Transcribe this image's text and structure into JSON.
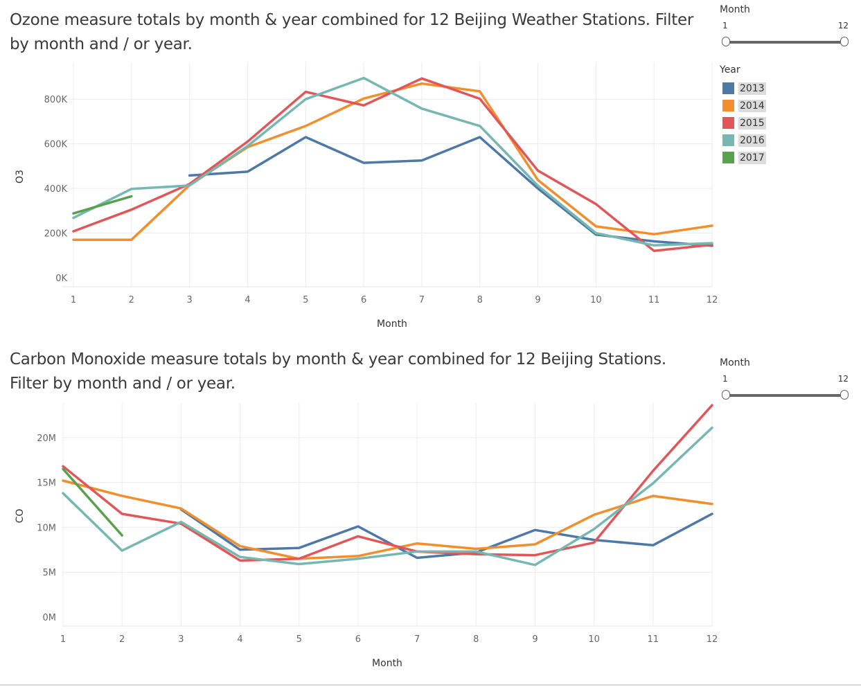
{
  "colors": {
    "2013": "#4e79a7",
    "2014": "#f28e2b",
    "2015": "#e15759",
    "2016": "#76b7b2",
    "2017": "#59a14f"
  },
  "month_filter_top": {
    "title": "Month",
    "min_label": "1",
    "max_label": "12"
  },
  "month_filter_bottom": {
    "title": "Month",
    "min_label": "1",
    "max_label": "12"
  },
  "legend": {
    "title": "Year",
    "items": [
      {
        "label": "2013",
        "color": "#4e79a7"
      },
      {
        "label": "2014",
        "color": "#f28e2b"
      },
      {
        "label": "2015",
        "color": "#e15759"
      },
      {
        "label": "2016",
        "color": "#76b7b2"
      },
      {
        "label": "2017",
        "color": "#59a14f"
      }
    ]
  },
  "chart_data": [
    {
      "type": "line",
      "title": "Ozone measure totals by month & year combined for 12 Beijing Weather Stations. Filter by month and / or year.",
      "xlabel": "Month",
      "ylabel": "O3",
      "x": [
        1,
        2,
        3,
        4,
        5,
        6,
        7,
        8,
        9,
        10,
        11,
        12
      ],
      "xlim": [
        1,
        12
      ],
      "ylim": [
        0,
        900000
      ],
      "yticks": [
        0,
        200000,
        400000,
        600000,
        800000
      ],
      "ytick_labels": [
        "0K",
        "200K",
        "400K",
        "600K",
        "800K"
      ],
      "grid": true,
      "series": [
        {
          "name": "2013",
          "x": [
            3,
            4,
            5,
            6,
            7,
            8,
            9,
            10,
            11,
            12
          ],
          "values": [
            458000,
            475000,
            630000,
            515000,
            525000,
            630000,
            400000,
            193000,
            163000,
            143000
          ]
        },
        {
          "name": "2014",
          "x": [
            1,
            2,
            3,
            4,
            5,
            6,
            7,
            8,
            9,
            10,
            11,
            12
          ],
          "values": [
            170000,
            170000,
            415000,
            585000,
            680000,
            803000,
            870000,
            835000,
            438000,
            230000,
            195000,
            233000
          ]
        },
        {
          "name": "2015",
          "x": [
            1,
            2,
            3,
            4,
            5,
            6,
            7,
            8,
            9,
            10,
            11,
            12
          ],
          "values": [
            208000,
            305000,
            420000,
            610000,
            833000,
            772000,
            893000,
            802000,
            480000,
            330000,
            120000,
            148000
          ]
        },
        {
          "name": "2016",
          "x": [
            1,
            2,
            3,
            4,
            5,
            6,
            7,
            8,
            9,
            10,
            11,
            12
          ],
          "values": [
            268000,
            398000,
            413000,
            590000,
            800000,
            895000,
            758000,
            680000,
            412000,
            200000,
            145000,
            155000
          ]
        },
        {
          "name": "2017",
          "x": [
            1,
            2
          ],
          "values": [
            288000,
            365000
          ]
        }
      ]
    },
    {
      "type": "line",
      "title": "Carbon Monoxide measure totals by month & year combined for 12 Beijing Stations. Filter by month and / or year.",
      "xlabel": "Month",
      "ylabel": "CO",
      "x": [
        1,
        2,
        3,
        4,
        5,
        6,
        7,
        8,
        9,
        10,
        11,
        12
      ],
      "xlim": [
        1,
        12
      ],
      "ylim": [
        0,
        24000000
      ],
      "yticks": [
        0,
        5000000,
        10000000,
        15000000,
        20000000
      ],
      "ytick_labels": [
        "0M",
        "5M",
        "10M",
        "15M",
        "20M"
      ],
      "grid": true,
      "series": [
        {
          "name": "2013",
          "x": [
            3,
            4,
            5,
            6,
            7,
            8,
            9,
            10,
            11,
            12
          ],
          "values": [
            12000000,
            7500000,
            7700000,
            10100000,
            6600000,
            7200000,
            9700000,
            8600000,
            8000000,
            11500000
          ]
        },
        {
          "name": "2014",
          "x": [
            1,
            2,
            3,
            4,
            5,
            6,
            7,
            8,
            9,
            10,
            11,
            12
          ],
          "values": [
            15200000,
            13500000,
            12100000,
            7900000,
            6500000,
            6800000,
            8200000,
            7600000,
            8100000,
            11400000,
            13500000,
            12600000
          ]
        },
        {
          "name": "2015",
          "x": [
            1,
            2,
            3,
            4,
            5,
            6,
            7,
            8,
            9,
            10,
            11,
            12
          ],
          "values": [
            16800000,
            11500000,
            10400000,
            6300000,
            6500000,
            9000000,
            7300000,
            7000000,
            6900000,
            8300000,
            16300000,
            23600000
          ]
        },
        {
          "name": "2016",
          "x": [
            1,
            2,
            3,
            4,
            5,
            6,
            7,
            8,
            9,
            10,
            11,
            12
          ],
          "values": [
            13800000,
            7400000,
            10600000,
            6700000,
            5900000,
            6500000,
            7300000,
            7300000,
            5800000,
            9800000,
            14900000,
            21100000
          ]
        },
        {
          "name": "2017",
          "x": [
            1,
            2
          ],
          "values": [
            16500000,
            9100000
          ]
        }
      ]
    }
  ]
}
